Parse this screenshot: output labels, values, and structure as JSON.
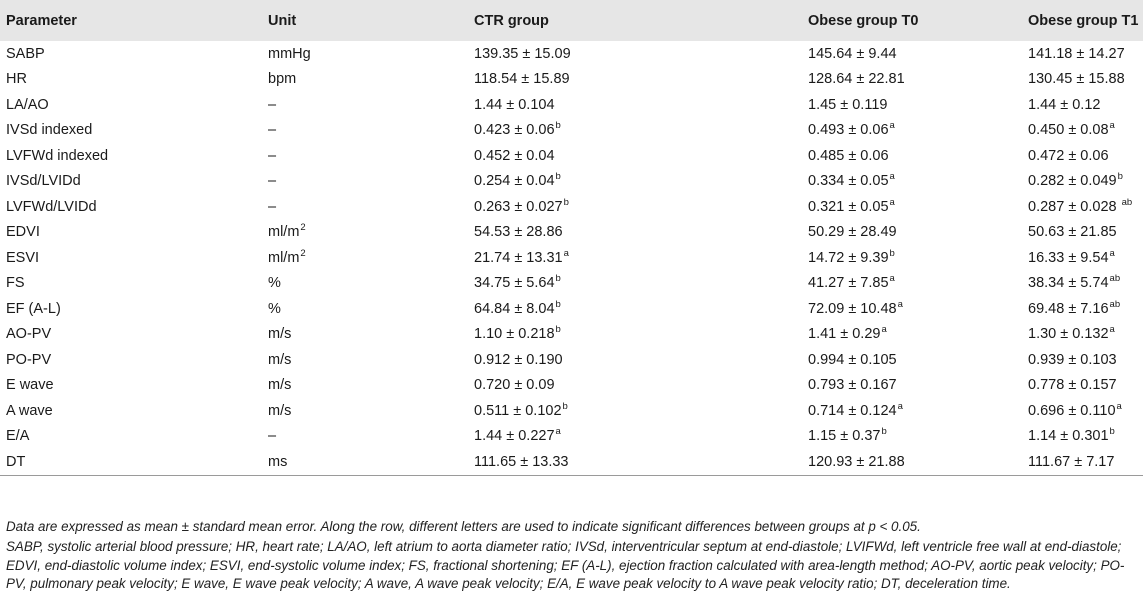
{
  "headers": [
    "Parameter",
    "Unit",
    "CTR group",
    "Obese group T0",
    "Obese group T1"
  ],
  "rows": [
    {
      "param": "SABP",
      "unit": "mmHg",
      "unit_sup": "",
      "c1": "139.35 ± 15.09",
      "s1": "",
      "c2": "145.64 ± 9.44",
      "s2": "",
      "c3": "141.18 ± 14.27",
      "s3": ""
    },
    {
      "param": "HR",
      "unit": "bpm",
      "unit_sup": "",
      "c1": "118.54 ± 15.89",
      "s1": "",
      "c2": "128.64 ± 22.81",
      "s2": "",
      "c3": "130.45 ± 15.88",
      "s3": ""
    },
    {
      "param": "LA/AO",
      "unit": "–",
      "unit_sup": "",
      "c1": "1.44 ± 0.104",
      "s1": "",
      "c2": "1.45 ± 0.119",
      "s2": "",
      "c3": "1.44 ± 0.12",
      "s3": ""
    },
    {
      "param": "IVSd indexed",
      "unit": "–",
      "unit_sup": "",
      "c1": "0.423 ± 0.06",
      "s1": "b",
      "c2": "0.493 ± 0.06",
      "s2": "a",
      "c3": "0.450 ± 0.08",
      "s3": "a"
    },
    {
      "param": "LVFWd indexed",
      "unit": "–",
      "unit_sup": "",
      "c1": "0.452 ± 0.04",
      "s1": "",
      "c2": "0.485 ± 0.06",
      "s2": "",
      "c3": "0.472 ± 0.06",
      "s3": ""
    },
    {
      "param": "IVSd/LVIDd",
      "unit": "–",
      "unit_sup": "",
      "c1": "0.254 ± 0.04",
      "s1": "b",
      "c2": "0.334 ± 0.05",
      "s2": "a",
      "c3": "0.282 ± 0.049",
      "s3": "b"
    },
    {
      "param": "LVFWd/LVIDd",
      "unit": "–",
      "unit_sup": "",
      "c1": "0.263 ± 0.027",
      "s1": "b",
      "c2": "0.321 ± 0.05",
      "s2": "a",
      "c3": "0.287 ± 0.028 ",
      "s3": "ab"
    },
    {
      "param": "EDVI",
      "unit": "ml/m",
      "unit_sup": "2",
      "c1": "54.53 ± 28.86",
      "s1": "",
      "c2": "50.29 ± 28.49",
      "s2": "",
      "c3": "50.63 ± 21.85",
      "s3": ""
    },
    {
      "param": "ESVI",
      "unit": "ml/m",
      "unit_sup": "2",
      "c1": "21.74 ± 13.31",
      "s1": "a",
      "c2": "14.72 ± 9.39",
      "s2": "b",
      "c3": "16.33 ± 9.54",
      "s3": "a"
    },
    {
      "param": "FS",
      "unit": "%",
      "unit_sup": "",
      "c1": "34.75 ± 5.64",
      "s1": "b",
      "c2": "41.27 ± 7.85",
      "s2": "a",
      "c3": "38.34 ± 5.74",
      "s3": "ab"
    },
    {
      "param": "EF (A-L)",
      "unit": "%",
      "unit_sup": "",
      "c1": "64.84 ± 8.04",
      "s1": "b",
      "c2": "72.09 ± 10.48",
      "s2": "a",
      "c3": "69.48 ± 7.16",
      "s3": "ab"
    },
    {
      "param": "AO-PV",
      "unit": "m/s",
      "unit_sup": "",
      "c1": "1.10 ± 0.218",
      "s1": "b",
      "c2": "1.41 ± 0.29",
      "s2": "a",
      "c3": "1.30 ± 0.132",
      "s3": "a"
    },
    {
      "param": "PO-PV",
      "unit": "m/s",
      "unit_sup": "",
      "c1": "0.912 ± 0.190",
      "s1": "",
      "c2": "0.994 ± 0.105",
      "s2": "",
      "c3": "0.939 ± 0.103",
      "s3": ""
    },
    {
      "param": "E wave",
      "unit": "m/s",
      "unit_sup": "",
      "c1": "0.720 ± 0.09",
      "s1": "",
      "c2": "0.793 ± 0.167",
      "s2": "",
      "c3": "0.778 ± 0.157",
      "s3": ""
    },
    {
      "param": "A wave",
      "unit": "m/s",
      "unit_sup": "",
      "c1": "0.511 ± 0.102",
      "s1": "b",
      "c2": "0.714 ± 0.124",
      "s2": "a",
      "c3": "0.696 ± 0.110",
      "s3": "a"
    },
    {
      "param": "E/A",
      "unit": "–",
      "unit_sup": "",
      "c1": "1.44 ± 0.227",
      "s1": "a",
      "c2": "1.15 ± 0.37",
      "s2": "b",
      "c3": "1.14 ± 0.301",
      "s3": "b"
    },
    {
      "param": "DT",
      "unit": "ms",
      "unit_sup": "",
      "c1": "111.65 ± 13.33",
      "s1": "",
      "c2": "120.93 ± 21.88",
      "s2": "",
      "c3": "111.67 ± 7.17",
      "s3": ""
    }
  ],
  "footnote_1": "Data are expressed as mean ± standard mean error. Along the row, different letters are used to indicate significant differences between groups at p < 0.05.",
  "footnote_2": "SABP, systolic arterial blood pressure; HR, heart rate; LA/AO, left atrium to aorta diameter ratio; IVSd, interventricular septum at end-diastole; LVIFWd, left ventricle free wall at end-diastole; EDVI, end-diastolic volume index; ESVI, end-systolic volume index; FS, fractional shortening; EF (A-L), ejection fraction calculated with area-length method; AO-PV, aortic peak velocity; PO-PV, pulmonary peak velocity; E wave, E wave peak velocity; A wave, A wave peak velocity; E/A, E wave peak velocity to A wave peak velocity ratio; DT, deceleration time."
}
